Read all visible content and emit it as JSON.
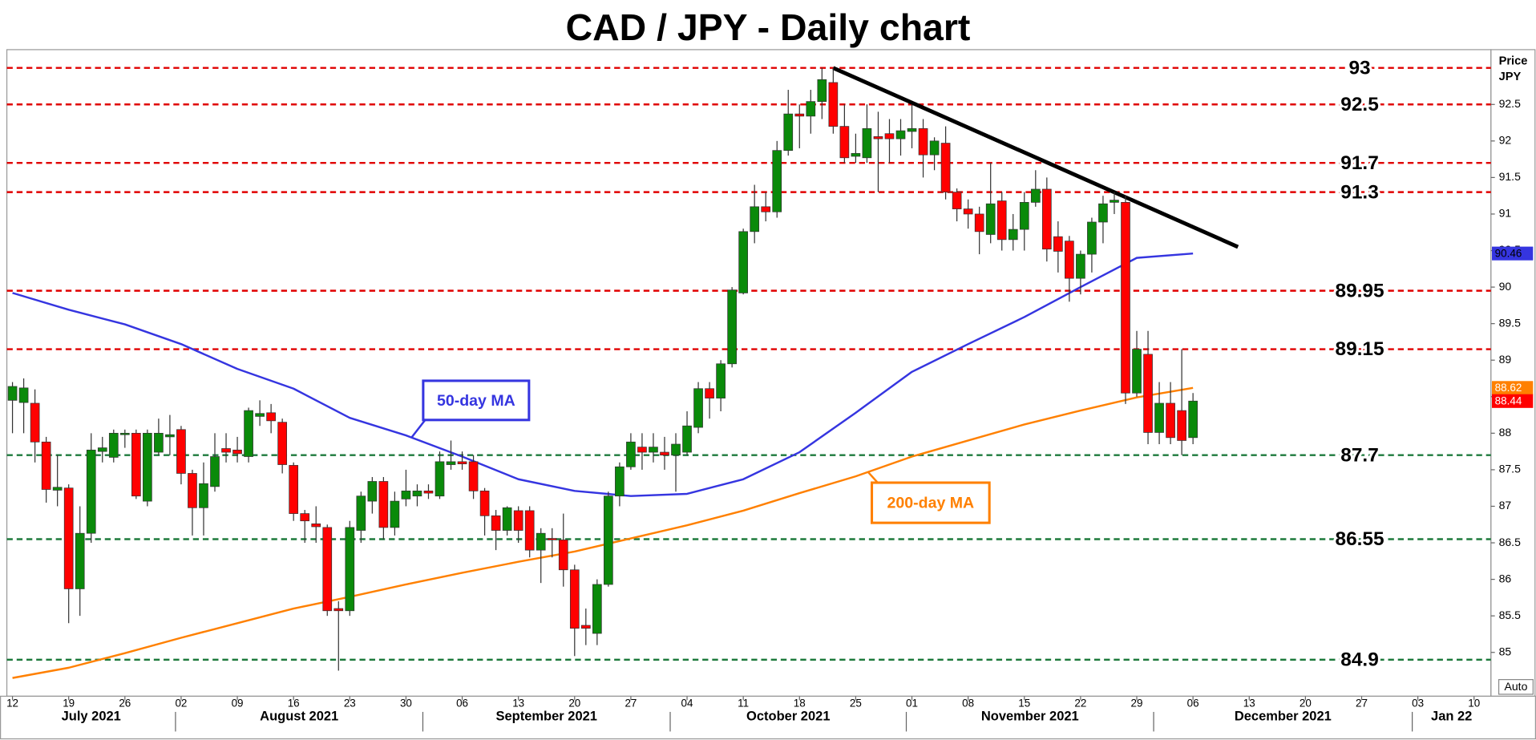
{
  "chart_data": {
    "type": "candlestick",
    "title": "CAD / JPY - Daily chart",
    "x": [
      "2021-07-12",
      "2021-07-13",
      "2021-07-14",
      "2021-07-15",
      "2021-07-16",
      "2021-07-19",
      "2021-07-20",
      "2021-07-21",
      "2021-07-22",
      "2021-07-23",
      "2021-07-26",
      "2021-07-27",
      "2021-07-28",
      "2021-07-29",
      "2021-07-30",
      "2021-08-02",
      "2021-08-03",
      "2021-08-04",
      "2021-08-05",
      "2021-08-06",
      "2021-08-09",
      "2021-08-10",
      "2021-08-11",
      "2021-08-12",
      "2021-08-13",
      "2021-08-16",
      "2021-08-17",
      "2021-08-18",
      "2021-08-19",
      "2021-08-20",
      "2021-08-23",
      "2021-08-24",
      "2021-08-25",
      "2021-08-26",
      "2021-08-27",
      "2021-08-30",
      "2021-08-31",
      "2021-09-01",
      "2021-09-02",
      "2021-09-03",
      "2021-09-06",
      "2021-09-07",
      "2021-09-08",
      "2021-09-09",
      "2021-09-10",
      "2021-09-13",
      "2021-09-14",
      "2021-09-15",
      "2021-09-16",
      "2021-09-17",
      "2021-09-20",
      "2021-09-21",
      "2021-09-22",
      "2021-09-23",
      "2021-09-24",
      "2021-09-27",
      "2021-09-28",
      "2021-09-29",
      "2021-09-30",
      "2021-10-01",
      "2021-10-04",
      "2021-10-05",
      "2021-10-06",
      "2021-10-07",
      "2021-10-08",
      "2021-10-11",
      "2021-10-12",
      "2021-10-13",
      "2021-10-14",
      "2021-10-15",
      "2021-10-18",
      "2021-10-19",
      "2021-10-20",
      "2021-10-21",
      "2021-10-22",
      "2021-10-25",
      "2021-10-26",
      "2021-10-27",
      "2021-10-28",
      "2021-10-29",
      "2021-11-01",
      "2021-11-02",
      "2021-11-03",
      "2021-11-04",
      "2021-11-05",
      "2021-11-08",
      "2021-11-09",
      "2021-11-10",
      "2021-11-11",
      "2021-11-12",
      "2021-11-15",
      "2021-11-16",
      "2021-11-17",
      "2021-11-18",
      "2021-11-19",
      "2021-11-22",
      "2021-11-23",
      "2021-11-24",
      "2021-11-25",
      "2021-11-26",
      "2021-11-29",
      "2021-11-30",
      "2021-12-01",
      "2021-12-02",
      "2021-12-03",
      "2021-12-06"
    ],
    "open": [
      88.45,
      88.42,
      88.41,
      87.88,
      87.22,
      87.25,
      85.87,
      86.63,
      87.75,
      87.67,
      87.98,
      88.0,
      87.07,
      87.74,
      87.95,
      88.05,
      87.45,
      86.98,
      87.27,
      87.79,
      87.77,
      87.68,
      88.23,
      88.28,
      88.15,
      87.56,
      86.9,
      86.76,
      86.71,
      85.6,
      85.57,
      86.67,
      87.07,
      87.34,
      86.71,
      87.1,
      87.14,
      87.21,
      87.14,
      87.57,
      87.61,
      87.61,
      87.21,
      86.87,
      86.67,
      86.94,
      86.94,
      86.4,
      86.56,
      86.54,
      86.13,
      85.37,
      85.26,
      85.93,
      87.14,
      87.54,
      87.81,
      87.74,
      87.74,
      87.7,
      87.74,
      88.08,
      88.61,
      88.48,
      88.95,
      89.92,
      90.76,
      91.1,
      91.03,
      91.87,
      92.37,
      92.34,
      92.54,
      92.8,
      92.2,
      91.79,
      91.77,
      92.06,
      92.1,
      92.03,
      92.13,
      92.17,
      91.81,
      91.97,
      91.3,
      91.07,
      91.0,
      90.72,
      91.18,
      90.65,
      90.79,
      91.16,
      91.34,
      90.69,
      90.63,
      90.12,
      90.45,
      90.89,
      91.16,
      91.16,
      88.55,
      89.08,
      88.01,
      88.41,
      88.31,
      87.94
    ],
    "high": [
      88.7,
      88.75,
      88.6,
      87.95,
      87.7,
      87.3,
      87.0,
      88.0,
      87.95,
      88.05,
      88.05,
      88.05,
      88.05,
      88.2,
      88.25,
      88.1,
      87.5,
      87.6,
      88.0,
      88.0,
      87.95,
      88.35,
      88.45,
      88.4,
      88.2,
      87.6,
      86.95,
      87.0,
      86.75,
      85.7,
      86.8,
      87.2,
      87.4,
      87.4,
      87.2,
      87.5,
      87.3,
      87.3,
      87.75,
      87.9,
      87.75,
      87.7,
      87.25,
      86.95,
      87.0,
      87.0,
      87.0,
      86.7,
      86.7,
      86.9,
      86.2,
      85.6,
      86.0,
      87.2,
      87.6,
      88.0,
      88.0,
      88.0,
      87.95,
      88.0,
      88.3,
      88.7,
      88.7,
      89.0,
      90.0,
      90.8,
      91.4,
      91.3,
      92.0,
      92.7,
      92.5,
      92.7,
      93.0,
      93.0,
      92.5,
      92.1,
      92.5,
      92.4,
      92.3,
      92.3,
      92.5,
      92.3,
      92.05,
      92.2,
      91.35,
      91.2,
      91.1,
      91.7,
      91.3,
      91.0,
      91.3,
      91.6,
      91.5,
      90.9,
      90.7,
      90.5,
      90.95,
      91.25,
      91.3,
      91.25,
      89.4,
      89.4,
      88.7,
      88.7,
      89.15,
      88.55
    ],
    "low": [
      88.0,
      88.0,
      87.6,
      87.05,
      87.0,
      85.4,
      85.5,
      86.5,
      87.6,
      87.6,
      87.8,
      87.1,
      87.0,
      87.7,
      87.7,
      87.3,
      86.6,
      86.6,
      87.2,
      87.6,
      87.6,
      87.6,
      88.1,
      88.0,
      87.45,
      86.8,
      86.5,
      86.5,
      85.5,
      84.75,
      85.5,
      86.5,
      86.9,
      86.55,
      86.6,
      87.0,
      87.0,
      87.1,
      87.1,
      87.5,
      87.5,
      87.1,
      86.6,
      86.4,
      86.6,
      86.5,
      86.3,
      85.95,
      86.3,
      85.9,
      84.95,
      85.1,
      85.1,
      85.9,
      87.0,
      87.5,
      87.5,
      87.6,
      87.5,
      87.2,
      87.7,
      88.0,
      88.2,
      88.3,
      88.9,
      89.9,
      90.6,
      90.9,
      90.95,
      91.8,
      91.9,
      92.1,
      92.3,
      92.1,
      91.7,
      91.7,
      91.7,
      91.3,
      91.7,
      91.8,
      91.9,
      91.5,
      91.6,
      91.2,
      90.9,
      90.8,
      90.45,
      90.6,
      90.5,
      90.5,
      90.5,
      91.1,
      90.35,
      90.2,
      89.8,
      89.9,
      90.2,
      90.6,
      91.0,
      88.4,
      88.5,
      87.85,
      87.85,
      87.85,
      87.7,
      87.85
    ],
    "close": [
      88.64,
      88.62,
      87.88,
      87.23,
      87.26,
      85.87,
      86.63,
      87.77,
      87.8,
      88.0,
      88.0,
      87.14,
      88.0,
      88.0,
      87.98,
      87.45,
      86.98,
      87.31,
      87.68,
      87.74,
      87.72,
      88.31,
      88.27,
      88.17,
      87.57,
      86.9,
      86.8,
      86.72,
      85.57,
      85.57,
      86.71,
      87.14,
      87.34,
      86.71,
      87.07,
      87.21,
      87.21,
      87.18,
      87.61,
      87.61,
      87.58,
      87.21,
      86.87,
      86.67,
      86.98,
      86.67,
      86.4,
      86.63,
      86.54,
      86.13,
      85.33,
      85.33,
      85.93,
      87.14,
      87.54,
      87.88,
      87.74,
      87.81,
      87.7,
      87.85,
      88.1,
      88.61,
      88.48,
      88.95,
      89.96,
      90.76,
      91.1,
      91.03,
      91.87,
      92.37,
      92.34,
      92.54,
      92.84,
      92.2,
      91.77,
      91.83,
      92.17,
      92.03,
      92.03,
      92.14,
      92.17,
      91.81,
      92.0,
      91.3,
      91.07,
      91.0,
      90.76,
      91.14,
      90.65,
      90.79,
      91.16,
      91.34,
      90.52,
      90.49,
      90.12,
      90.45,
      90.89,
      91.14,
      91.19,
      88.55,
      89.15,
      88.01,
      88.41,
      87.94,
      87.9,
      88.44
    ],
    "up_color": "#0a8a0a",
    "down_color": "#ff0000",
    "xlim": [
      "2021-07-12",
      "2022-01-11"
    ],
    "ylim": [
      84.4,
      93.25
    ],
    "yticks": [
      85,
      85.5,
      86,
      86.5,
      87,
      87.5,
      88,
      88.5,
      89,
      89.5,
      90,
      90.5,
      91,
      91.5,
      92,
      92.5
    ],
    "ylabel": [
      "Price",
      "JPY"
    ],
    "xticks": [
      {
        "value": "2021-07-12",
        "label": "12"
      },
      {
        "value": "2021-07-19",
        "label": "19"
      },
      {
        "value": "2021-07-26",
        "label": "26"
      },
      {
        "value": "2021-08-02",
        "label": "02"
      },
      {
        "value": "2021-08-09",
        "label": "09"
      },
      {
        "value": "2021-08-16",
        "label": "16"
      },
      {
        "value": "2021-08-23",
        "label": "23"
      },
      {
        "value": "2021-08-30",
        "label": "30"
      },
      {
        "value": "2021-09-06",
        "label": "06"
      },
      {
        "value": "2021-09-13",
        "label": "13"
      },
      {
        "value": "2021-09-20",
        "label": "20"
      },
      {
        "value": "2021-09-27",
        "label": "27"
      },
      {
        "value": "2021-10-04",
        "label": "04"
      },
      {
        "value": "2021-10-11",
        "label": "11"
      },
      {
        "value": "2021-10-18",
        "label": "18"
      },
      {
        "value": "2021-10-25",
        "label": "25"
      },
      {
        "value": "2021-11-01",
        "label": "01"
      },
      {
        "value": "2021-11-08",
        "label": "08"
      },
      {
        "value": "2021-11-15",
        "label": "15"
      },
      {
        "value": "2021-11-22",
        "label": "22"
      },
      {
        "value": "2021-11-29",
        "label": "29"
      },
      {
        "value": "2021-12-06",
        "label": "06"
      },
      {
        "value": "2021-12-13",
        "label": "13"
      },
      {
        "value": "2021-12-20",
        "label": "20"
      },
      {
        "value": "2021-12-27",
        "label": "27"
      },
      {
        "value": "2022-01-03",
        "label": "03"
      },
      {
        "value": "2022-01-10",
        "label": "10"
      }
    ],
    "months": [
      {
        "value": "2021-07",
        "label": "July 2021"
      },
      {
        "value": "2021-08",
        "label": "August 2021"
      },
      {
        "value": "2021-09",
        "label": "September 2021"
      },
      {
        "value": "2021-10",
        "label": "October 2021"
      },
      {
        "value": "2021-11",
        "label": "November 2021"
      },
      {
        "value": "2021-12",
        "label": "December 2021"
      },
      {
        "value": "2022-01",
        "label": "Jan 22"
      }
    ],
    "series": [
      {
        "name": "50-day MA",
        "color": "#3535e0",
        "x": [
          "2021-07-12",
          "2021-07-19",
          "2021-07-26",
          "2021-08-02",
          "2021-08-09",
          "2021-08-16",
          "2021-08-23",
          "2021-08-30",
          "2021-09-06",
          "2021-09-13",
          "2021-09-20",
          "2021-09-27",
          "2021-10-04",
          "2021-10-11",
          "2021-10-18",
          "2021-10-25",
          "2021-11-01",
          "2021-11-08",
          "2021-11-15",
          "2021-11-22",
          "2021-11-29",
          "2021-12-06"
        ],
        "values": [
          89.92,
          89.69,
          89.49,
          89.22,
          88.88,
          88.61,
          88.21,
          87.97,
          87.68,
          87.37,
          87.21,
          87.14,
          87.17,
          87.37,
          87.74,
          88.28,
          88.84,
          89.22,
          89.59,
          90.0,
          90.4,
          90.46
        ]
      },
      {
        "name": "200-day MA",
        "color": "#ff8000",
        "x": [
          "2021-07-12",
          "2021-07-19",
          "2021-07-26",
          "2021-08-02",
          "2021-08-09",
          "2021-08-16",
          "2021-08-23",
          "2021-08-30",
          "2021-09-06",
          "2021-09-13",
          "2021-09-20",
          "2021-09-27",
          "2021-10-04",
          "2021-10-11",
          "2021-10-18",
          "2021-10-25",
          "2021-11-01",
          "2021-11-08",
          "2021-11-15",
          "2021-11-22",
          "2021-11-29",
          "2021-12-06"
        ],
        "values": [
          84.65,
          84.79,
          84.99,
          85.2,
          85.4,
          85.6,
          85.76,
          85.93,
          86.09,
          86.24,
          86.38,
          86.56,
          86.74,
          86.94,
          87.18,
          87.41,
          87.68,
          87.9,
          88.12,
          88.31,
          88.49,
          88.62
        ]
      }
    ],
    "trendline": {
      "color": "#000000",
      "x": [
        "2021-10-21",
        "2021-12-10"
      ],
      "values": [
        93.0,
        90.55
      ]
    },
    "levels": [
      {
        "value": 93,
        "color": "#e00000"
      },
      {
        "value": 92.5,
        "color": "#e00000"
      },
      {
        "value": 91.7,
        "color": "#e00000"
      },
      {
        "value": 91.3,
        "color": "#e00000"
      },
      {
        "value": 89.95,
        "color": "#e00000"
      },
      {
        "value": 89.15,
        "color": "#e00000"
      },
      {
        "value": 87.7,
        "color": "#1e7a3c"
      },
      {
        "value": 86.55,
        "color": "#1e7a3c"
      },
      {
        "value": 84.9,
        "color": "#1e7a3c"
      }
    ],
    "price_tags": [
      {
        "value": 90.46,
        "color": "#3535e0"
      },
      {
        "value": 88.62,
        "color": "#ff8000"
      },
      {
        "value": 88.44,
        "color": "#ff0000"
      }
    ],
    "auto_label": "Auto"
  }
}
